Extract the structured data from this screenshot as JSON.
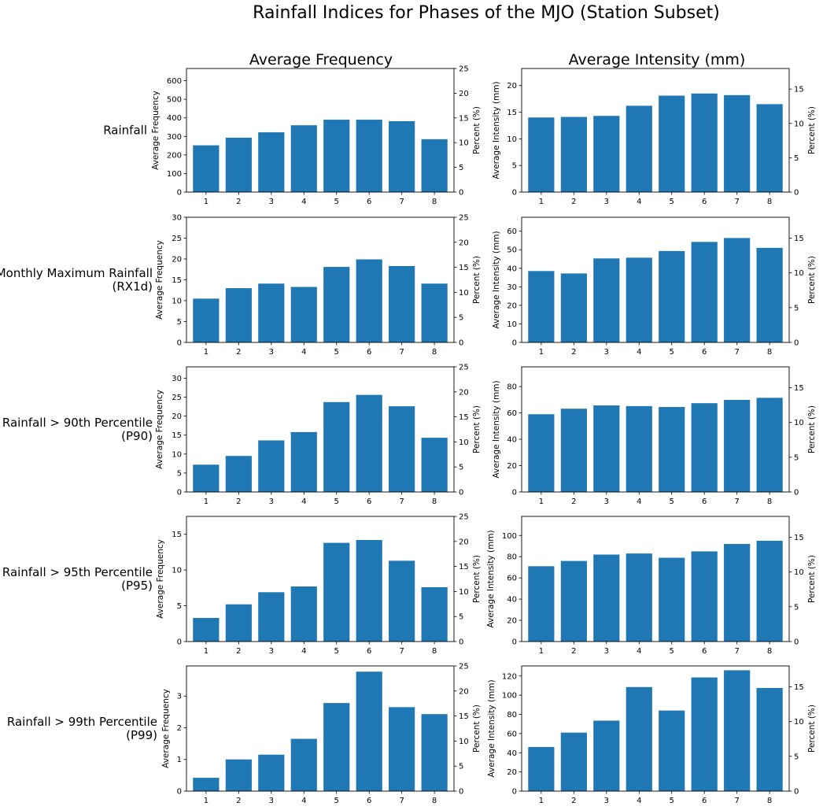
{
  "figure": {
    "title": "Rainfall Indices for Phases of the MJO (Station Subset)",
    "columns": [
      {
        "title": "Average Frequency",
        "ylabel": "Average Frequency",
        "y2label": "Percent (%)"
      },
      {
        "title": "Average Intensity (mm)",
        "ylabel": "Average Intensity (mm)",
        "y2label": "Percent (%)"
      }
    ],
    "rows": [
      {
        "label_lines": [
          "Rainfall"
        ]
      },
      {
        "label_lines": [
          "Monthly Maximum Rainfall",
          "(RX1d)"
        ]
      },
      {
        "label_lines": [
          "Rainfall > 90th Percentile",
          "(P90)"
        ]
      },
      {
        "label_lines": [
          "Rainfall > 95th Percentile",
          "(P95)"
        ]
      },
      {
        "label_lines": [
          "Rainfall > 99th Percentile",
          "(P99)"
        ]
      }
    ],
    "bar_color": "#1f77b4"
  },
  "chart_data": [
    {
      "type": "bar",
      "row": 0,
      "col": 0,
      "categories": [
        "1",
        "2",
        "3",
        "4",
        "5",
        "6",
        "7",
        "8"
      ],
      "values": [
        252,
        293,
        322,
        360,
        390,
        390,
        382,
        285
      ],
      "ylim": [
        0,
        666
      ],
      "yticks": [
        0,
        100,
        200,
        300,
        400,
        500,
        600
      ],
      "y2lim": [
        0,
        25
      ],
      "y2ticks": [
        0,
        5,
        10,
        15,
        20,
        25
      ],
      "ylabel": "Average Frequency",
      "y2label": "Percent (%)",
      "title": "Average Frequency"
    },
    {
      "type": "bar",
      "row": 0,
      "col": 1,
      "categories": [
        "1",
        "2",
        "3",
        "4",
        "5",
        "6",
        "7",
        "8"
      ],
      "values": [
        14.0,
        14.1,
        14.3,
        16.2,
        18.1,
        18.5,
        18.2,
        16.5
      ],
      "ylim": [
        0,
        23.2
      ],
      "yticks": [
        0,
        5,
        10,
        15,
        20
      ],
      "y2lim": [
        0,
        18
      ],
      "y2ticks": [
        0,
        5,
        10,
        15
      ],
      "ylabel": "Average Intensity (mm)",
      "y2label": "Percent (%)",
      "title": "Average Intensity (mm)"
    },
    {
      "type": "bar",
      "row": 1,
      "col": 0,
      "categories": [
        "1",
        "2",
        "3",
        "4",
        "5",
        "6",
        "7",
        "8"
      ],
      "values": [
        10.5,
        13.0,
        14.1,
        13.3,
        18.1,
        19.9,
        18.3,
        14.1
      ],
      "ylim": [
        0,
        30
      ],
      "yticks": [
        0,
        5,
        10,
        15,
        20,
        25,
        30
      ],
      "y2lim": [
        0,
        25
      ],
      "y2ticks": [
        0,
        5,
        10,
        15,
        20,
        25
      ],
      "ylabel": "Average Frequency",
      "y2label": "Percent (%)"
    },
    {
      "type": "bar",
      "row": 1,
      "col": 1,
      "categories": [
        "1",
        "2",
        "3",
        "4",
        "5",
        "6",
        "7",
        "8"
      ],
      "values": [
        38.5,
        37.2,
        45.3,
        45.7,
        49.3,
        54.2,
        56.3,
        51.0
      ],
      "ylim": [
        0,
        67.5
      ],
      "yticks": [
        0,
        10,
        20,
        30,
        40,
        50,
        60
      ],
      "y2lim": [
        0,
        18
      ],
      "y2ticks": [
        0,
        5,
        10,
        15
      ],
      "ylabel": "Average Intensity (mm)",
      "y2label": "Percent (%)"
    },
    {
      "type": "bar",
      "row": 2,
      "col": 0,
      "categories": [
        "1",
        "2",
        "3",
        "4",
        "5",
        "6",
        "7",
        "8"
      ],
      "values": [
        7.2,
        9.5,
        13.6,
        15.8,
        23.7,
        25.6,
        22.6,
        14.3
      ],
      "ylim": [
        0,
        33
      ],
      "yticks": [
        0,
        5,
        10,
        15,
        20,
        25,
        30
      ],
      "y2lim": [
        0,
        25
      ],
      "y2ticks": [
        0,
        5,
        10,
        15,
        20,
        25
      ],
      "ylabel": "Average Frequency",
      "y2label": "Percent (%)"
    },
    {
      "type": "bar",
      "row": 2,
      "col": 1,
      "categories": [
        "1",
        "2",
        "3",
        "4",
        "5",
        "6",
        "7",
        "8"
      ],
      "values": [
        59.0,
        63.2,
        65.7,
        65.2,
        64.5,
        67.4,
        69.9,
        71.5
      ],
      "ylim": [
        0,
        95
      ],
      "yticks": [
        0,
        20,
        40,
        60,
        80
      ],
      "y2lim": [
        0,
        18
      ],
      "y2ticks": [
        0,
        5,
        10,
        15
      ],
      "ylabel": "Average Intensity (mm)",
      "y2label": "Percent (%)"
    },
    {
      "type": "bar",
      "row": 3,
      "col": 0,
      "categories": [
        "1",
        "2",
        "3",
        "4",
        "5",
        "6",
        "7",
        "8"
      ],
      "values": [
        3.3,
        5.2,
        6.9,
        7.7,
        13.8,
        14.2,
        11.3,
        7.6
      ],
      "ylim": [
        0,
        17.5
      ],
      "yticks": [
        0,
        5,
        10,
        15
      ],
      "y2lim": [
        0,
        25
      ],
      "y2ticks": [
        0,
        5,
        10,
        15,
        20,
        25
      ],
      "ylabel": "Average Frequency",
      "y2label": "Percent (%)"
    },
    {
      "type": "bar",
      "row": 3,
      "col": 1,
      "categories": [
        "1",
        "2",
        "3",
        "4",
        "5",
        "6",
        "7",
        "8"
      ],
      "values": [
        71.0,
        76.0,
        82.0,
        83.0,
        79.0,
        85.0,
        92.0,
        95.0
      ],
      "ylim": [
        0,
        118
      ],
      "yticks": [
        0,
        20,
        40,
        60,
        80,
        100
      ],
      "y2lim": [
        0,
        18
      ],
      "y2ticks": [
        0,
        5,
        10,
        15
      ],
      "ylabel": "Average Intensity (mm)",
      "y2label": "Percent (%)"
    },
    {
      "type": "bar",
      "row": 4,
      "col": 0,
      "categories": [
        "1",
        "2",
        "3",
        "4",
        "5",
        "6",
        "7",
        "8"
      ],
      "values": [
        0.42,
        1.0,
        1.15,
        1.65,
        2.78,
        3.77,
        2.65,
        2.43
      ],
      "ylim": [
        0,
        3.95
      ],
      "yticks": [
        0,
        1,
        2,
        3
      ],
      "y2lim": [
        0,
        25
      ],
      "y2ticks": [
        0,
        5,
        10,
        15,
        20,
        25
      ],
      "ylabel": "Average Frequency",
      "y2label": "Percent (%)"
    },
    {
      "type": "bar",
      "row": 4,
      "col": 1,
      "categories": [
        "1",
        "2",
        "3",
        "4",
        "5",
        "6",
        "7",
        "8"
      ],
      "values": [
        46.0,
        61.0,
        73.5,
        108.5,
        84.0,
        118.5,
        126.0,
        107.5
      ],
      "ylim": [
        0,
        130.5
      ],
      "yticks": [
        0,
        20,
        40,
        60,
        80,
        100,
        120
      ],
      "y2lim": [
        0,
        18
      ],
      "y2ticks": [
        0,
        5,
        10,
        15
      ],
      "ylabel": "Average Intensity (mm)",
      "y2label": "Percent (%)"
    }
  ]
}
